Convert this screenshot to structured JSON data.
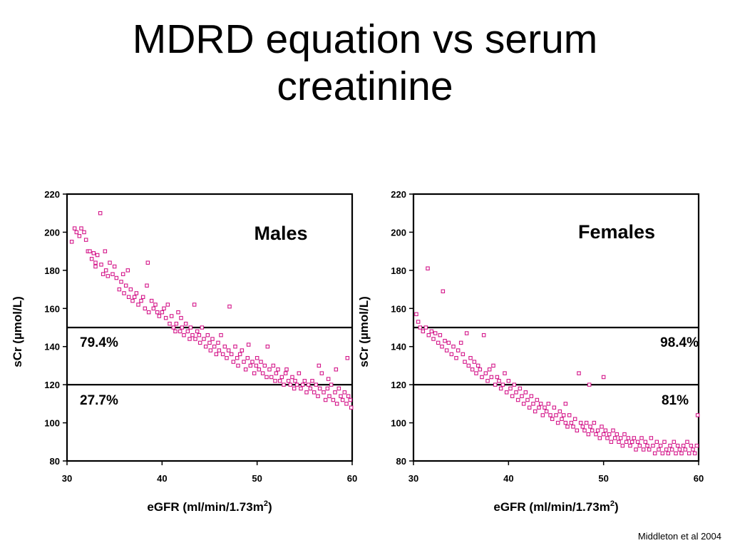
{
  "slide": {
    "title_line1": "MDRD equation vs serum",
    "title_line2": "creatinine",
    "citation": "Middleton et al 2004"
  },
  "colors": {
    "points": "#d4178a",
    "axes": "#000000"
  },
  "chart_data": [
    {
      "type": "scatter",
      "panel_label": "Males",
      "xlabel": "eGFR (ml/min/1.73m",
      "xlabel_sup": "2",
      "xlabel_tail": ")",
      "ylabel": "sCr (µmol/L)",
      "xlim": [
        30,
        60
      ],
      "ylim": [
        80,
        220
      ],
      "xticks": [
        30,
        40,
        50,
        60
      ],
      "yticks": [
        80,
        100,
        120,
        140,
        160,
        180,
        200,
        220
      ],
      "reference_lines": [
        150,
        120
      ],
      "annotations": [
        {
          "text": "79.4%",
          "position": "left, between 150 and 120"
        },
        {
          "text": "27.7%",
          "position": "left, below 120"
        }
      ],
      "points": [
        [
          30.5,
          195
        ],
        [
          30.8,
          202
        ],
        [
          31.0,
          200
        ],
        [
          31.3,
          198
        ],
        [
          31.5,
          202
        ],
        [
          31.8,
          200
        ],
        [
          32.0,
          196
        ],
        [
          32.2,
          190
        ],
        [
          32.4,
          190
        ],
        [
          32.6,
          186
        ],
        [
          32.8,
          189
        ],
        [
          33.0,
          184
        ],
        [
          33.0,
          182
        ],
        [
          33.2,
          188
        ],
        [
          33.5,
          210
        ],
        [
          33.6,
          183
        ],
        [
          33.8,
          178
        ],
        [
          34.0,
          190
        ],
        [
          34.1,
          180
        ],
        [
          34.3,
          177
        ],
        [
          34.5,
          184
        ],
        [
          34.8,
          178
        ],
        [
          35.0,
          182
        ],
        [
          35.2,
          176
        ],
        [
          35.5,
          170
        ],
        [
          35.7,
          174
        ],
        [
          35.9,
          178
        ],
        [
          36.0,
          168
        ],
        [
          36.2,
          172
        ],
        [
          36.4,
          180
        ],
        [
          36.5,
          166
        ],
        [
          36.7,
          170
        ],
        [
          36.9,
          164
        ],
        [
          37.1,
          166
        ],
        [
          37.3,
          168
        ],
        [
          37.5,
          162
        ],
        [
          37.8,
          164
        ],
        [
          38.0,
          166
        ],
        [
          38.2,
          160
        ],
        [
          38.4,
          172
        ],
        [
          38.5,
          184
        ],
        [
          38.6,
          158
        ],
        [
          38.9,
          164
        ],
        [
          39.1,
          160
        ],
        [
          39.3,
          162
        ],
        [
          39.5,
          158
        ],
        [
          39.7,
          156
        ],
        [
          40.0,
          158
        ],
        [
          40.2,
          160
        ],
        [
          40.4,
          155
        ],
        [
          40.6,
          162
        ],
        [
          40.8,
          152
        ],
        [
          41.0,
          156
        ],
        [
          41.2,
          150
        ],
        [
          41.4,
          148
        ],
        [
          41.5,
          152
        ],
        [
          41.7,
          158
        ],
        [
          41.9,
          148
        ],
        [
          42.0,
          155
        ],
        [
          42.1,
          150
        ],
        [
          42.3,
          146
        ],
        [
          42.5,
          152
        ],
        [
          42.7,
          148
        ],
        [
          42.9,
          144
        ],
        [
          43.0,
          150
        ],
        [
          43.2,
          146
        ],
        [
          43.4,
          162
        ],
        [
          43.5,
          144
        ],
        [
          43.7,
          148
        ],
        [
          43.9,
          146
        ],
        [
          44.0,
          142
        ],
        [
          44.2,
          150
        ],
        [
          44.4,
          144
        ],
        [
          44.6,
          140
        ],
        [
          44.8,
          146
        ],
        [
          45.0,
          142
        ],
        [
          45.1,
          138
        ],
        [
          45.3,
          144
        ],
        [
          45.5,
          140
        ],
        [
          45.7,
          136
        ],
        [
          45.9,
          142
        ],
        [
          46.0,
          138
        ],
        [
          46.2,
          146
        ],
        [
          46.4,
          136
        ],
        [
          46.6,
          140
        ],
        [
          46.8,
          134
        ],
        [
          47.0,
          138
        ],
        [
          47.1,
          161
        ],
        [
          47.3,
          136
        ],
        [
          47.5,
          132
        ],
        [
          47.7,
          140
        ],
        [
          47.9,
          134
        ],
        [
          48.0,
          130
        ],
        [
          48.2,
          136
        ],
        [
          48.4,
          138
        ],
        [
          48.6,
          132
        ],
        [
          48.8,
          128
        ],
        [
          49.0,
          134
        ],
        [
          49.1,
          141
        ],
        [
          49.3,
          130
        ],
        [
          49.5,
          132
        ],
        [
          49.7,
          126
        ],
        [
          49.9,
          130
        ],
        [
          50.0,
          134
        ],
        [
          50.2,
          128
        ],
        [
          50.4,
          132
        ],
        [
          50.6,
          126
        ],
        [
          50.8,
          130
        ],
        [
          51.0,
          124
        ],
        [
          51.1,
          140
        ],
        [
          51.3,
          128
        ],
        [
          51.5,
          124
        ],
        [
          51.7,
          130
        ],
        [
          51.9,
          122
        ],
        [
          52.0,
          126
        ],
        [
          52.2,
          128
        ],
        [
          52.4,
          122
        ],
        [
          52.6,
          124
        ],
        [
          52.8,
          120
        ],
        [
          53.0,
          126
        ],
        [
          53.1,
          128
        ],
        [
          53.3,
          122
        ],
        [
          53.5,
          120
        ],
        [
          53.7,
          124
        ],
        [
          53.9,
          118
        ],
        [
          54.0,
          122
        ],
        [
          54.2,
          120
        ],
        [
          54.4,
          126
        ],
        [
          54.6,
          118
        ],
        [
          54.8,
          120
        ],
        [
          55.0,
          122
        ],
        [
          55.2,
          116
        ],
        [
          55.4,
          120
        ],
        [
          55.6,
          118
        ],
        [
          55.8,
          122
        ],
        [
          56.0,
          116
        ],
        [
          56.2,
          120
        ],
        [
          56.4,
          114
        ],
        [
          56.6,
          118
        ],
        [
          56.8,
          126
        ],
        [
          57.0,
          116
        ],
        [
          57.2,
          112
        ],
        [
          57.4,
          118
        ],
        [
          57.6,
          114
        ],
        [
          57.8,
          120
        ],
        [
          58.0,
          112
        ],
        [
          58.2,
          116
        ],
        [
          58.4,
          110
        ],
        [
          58.6,
          118
        ],
        [
          58.8,
          114
        ],
        [
          59.0,
          112
        ],
        [
          59.2,
          116
        ],
        [
          59.4,
          110
        ],
        [
          59.6,
          114
        ],
        [
          59.8,
          112
        ],
        [
          59.9,
          108
        ],
        [
          59.5,
          134
        ],
        [
          58.3,
          128
        ],
        [
          57.5,
          123
        ],
        [
          56.5,
          130
        ]
      ]
    },
    {
      "type": "scatter",
      "panel_label": "Females",
      "xlabel": "eGFR (ml/min/1.73m",
      "xlabel_sup": "2",
      "xlabel_tail": ")",
      "ylabel": "sCr (µmol/L)",
      "xlim": [
        30,
        60
      ],
      "ylim": [
        80,
        220
      ],
      "xticks": [
        30,
        40,
        50,
        60
      ],
      "yticks": [
        80,
        100,
        120,
        140,
        160,
        180,
        200,
        220
      ],
      "reference_lines": [
        150,
        120
      ],
      "annotations": [
        {
          "text": "98.4%",
          "position": "right, between 150 and 120"
        },
        {
          "text": "81%",
          "position": "right, below 120"
        }
      ],
      "points": [
        [
          30.3,
          157
        ],
        [
          30.5,
          153
        ],
        [
          30.7,
          150
        ],
        [
          31.0,
          148
        ],
        [
          31.3,
          150
        ],
        [
          31.5,
          181
        ],
        [
          31.6,
          146
        ],
        [
          31.9,
          148
        ],
        [
          32.1,
          144
        ],
        [
          32.3,
          147
        ],
        [
          32.6,
          142
        ],
        [
          32.8,
          146
        ],
        [
          33.0,
          140
        ],
        [
          33.1,
          169
        ],
        [
          33.3,
          143
        ],
        [
          33.5,
          138
        ],
        [
          33.7,
          142
        ],
        [
          34.0,
          136
        ],
        [
          34.2,
          140
        ],
        [
          34.5,
          134
        ],
        [
          34.7,
          138
        ],
        [
          35.0,
          142
        ],
        [
          35.2,
          136
        ],
        [
          35.4,
          132
        ],
        [
          35.6,
          147
        ],
        [
          35.8,
          130
        ],
        [
          36.0,
          134
        ],
        [
          36.2,
          128
        ],
        [
          36.4,
          132
        ],
        [
          36.6,
          126
        ],
        [
          36.8,
          130
        ],
        [
          37.0,
          128
        ],
        [
          37.2,
          124
        ],
        [
          37.4,
          146
        ],
        [
          37.6,
          126
        ],
        [
          37.8,
          122
        ],
        [
          38.0,
          128
        ],
        [
          38.2,
          124
        ],
        [
          38.4,
          130
        ],
        [
          38.6,
          120
        ],
        [
          38.8,
          124
        ],
        [
          39.0,
          122
        ],
        [
          39.2,
          118
        ],
        [
          39.4,
          120
        ],
        [
          39.6,
          126
        ],
        [
          39.8,
          116
        ],
        [
          40.0,
          122
        ],
        [
          40.2,
          118
        ],
        [
          40.4,
          114
        ],
        [
          40.6,
          120
        ],
        [
          40.8,
          116
        ],
        [
          41.0,
          112
        ],
        [
          41.2,
          118
        ],
        [
          41.4,
          114
        ],
        [
          41.6,
          110
        ],
        [
          41.8,
          116
        ],
        [
          42.0,
          112
        ],
        [
          42.2,
          108
        ],
        [
          42.4,
          114
        ],
        [
          42.6,
          110
        ],
        [
          42.8,
          106
        ],
        [
          43.0,
          112
        ],
        [
          43.2,
          108
        ],
        [
          43.4,
          110
        ],
        [
          43.6,
          104
        ],
        [
          43.8,
          108
        ],
        [
          44.0,
          106
        ],
        [
          44.2,
          110
        ],
        [
          44.4,
          104
        ],
        [
          44.6,
          102
        ],
        [
          44.8,
          108
        ],
        [
          45.0,
          104
        ],
        [
          45.2,
          100
        ],
        [
          45.4,
          106
        ],
        [
          45.6,
          102
        ],
        [
          45.8,
          104
        ],
        [
          46.0,
          100
        ],
        [
          46.2,
          98
        ],
        [
          46.4,
          104
        ],
        [
          46.6,
          100
        ],
        [
          46.8,
          98
        ],
        [
          47.0,
          102
        ],
        [
          47.2,
          96
        ],
        [
          47.4,
          126
        ],
        [
          47.6,
          100
        ],
        [
          47.8,
          98
        ],
        [
          48.0,
          96
        ],
        [
          48.2,
          100
        ],
        [
          48.4,
          94
        ],
        [
          48.6,
          98
        ],
        [
          48.8,
          96
        ],
        [
          49.0,
          100
        ],
        [
          49.2,
          94
        ],
        [
          49.4,
          96
        ],
        [
          49.6,
          92
        ],
        [
          49.8,
          98
        ],
        [
          50.0,
          94
        ],
        [
          50.2,
          96
        ],
        [
          50.4,
          92
        ],
        [
          50.6,
          94
        ],
        [
          50.8,
          90
        ],
        [
          51.0,
          96
        ],
        [
          51.2,
          92
        ],
        [
          51.4,
          94
        ],
        [
          51.6,
          90
        ],
        [
          51.8,
          92
        ],
        [
          52.0,
          88
        ],
        [
          52.2,
          94
        ],
        [
          52.4,
          90
        ],
        [
          52.6,
          92
        ],
        [
          52.8,
          88
        ],
        [
          53.0,
          90
        ],
        [
          53.2,
          92
        ],
        [
          53.4,
          86
        ],
        [
          53.6,
          90
        ],
        [
          53.8,
          88
        ],
        [
          54.0,
          92
        ],
        [
          54.2,
          86
        ],
        [
          54.4,
          90
        ],
        [
          54.6,
          88
        ],
        [
          54.8,
          86
        ],
        [
          55.0,
          92
        ],
        [
          55.2,
          88
        ],
        [
          55.4,
          84
        ],
        [
          55.6,
          90
        ],
        [
          55.8,
          86
        ],
        [
          56.0,
          88
        ],
        [
          56.2,
          84
        ],
        [
          56.4,
          90
        ],
        [
          56.6,
          86
        ],
        [
          56.8,
          84
        ],
        [
          57.0,
          88
        ],
        [
          57.2,
          86
        ],
        [
          57.4,
          90
        ],
        [
          57.6,
          84
        ],
        [
          57.8,
          88
        ],
        [
          58.0,
          86
        ],
        [
          58.2,
          84
        ],
        [
          58.4,
          88
        ],
        [
          58.6,
          86
        ],
        [
          58.8,
          90
        ],
        [
          59.0,
          84
        ],
        [
          59.2,
          88
        ],
        [
          59.4,
          86
        ],
        [
          59.6,
          84
        ],
        [
          59.8,
          88
        ],
        [
          59.9,
          104
        ],
        [
          50.0,
          124
        ],
        [
          48.5,
          120
        ],
        [
          46.0,
          110
        ]
      ]
    }
  ]
}
